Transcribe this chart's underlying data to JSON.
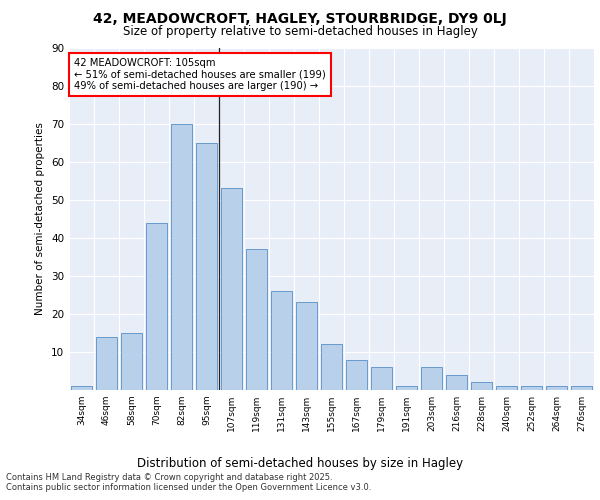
{
  "title1": "42, MEADOWCROFT, HAGLEY, STOURBRIDGE, DY9 0LJ",
  "title2": "Size of property relative to semi-detached houses in Hagley",
  "xlabel": "Distribution of semi-detached houses by size in Hagley",
  "ylabel": "Number of semi-detached properties",
  "categories": [
    "34sqm",
    "46sqm",
    "58sqm",
    "70sqm",
    "82sqm",
    "95sqm",
    "107sqm",
    "119sqm",
    "131sqm",
    "143sqm",
    "155sqm",
    "167sqm",
    "179sqm",
    "191sqm",
    "203sqm",
    "216sqm",
    "228sqm",
    "240sqm",
    "252sqm",
    "264sqm",
    "276sqm"
  ],
  "values": [
    1,
    14,
    15,
    44,
    70,
    65,
    53,
    37,
    26,
    23,
    12,
    8,
    6,
    1,
    6,
    4,
    2,
    1,
    1,
    1,
    1
  ],
  "bar_color": "#b8d0ea",
  "bar_edge_color": "#6699cc",
  "annotation_title": "42 MEADOWCROFT: 105sqm",
  "annotation_line1": "← 51% of semi-detached houses are smaller (199)",
  "annotation_line2": "49% of semi-detached houses are larger (190) →",
  "bg_color": "#e8eef8",
  "grid_color": "#ffffff",
  "ylim": [
    0,
    90
  ],
  "yticks": [
    0,
    10,
    20,
    30,
    40,
    50,
    60,
    70,
    80,
    90
  ],
  "footer1": "Contains HM Land Registry data © Crown copyright and database right 2025.",
  "footer2": "Contains public sector information licensed under the Open Government Licence v3.0."
}
